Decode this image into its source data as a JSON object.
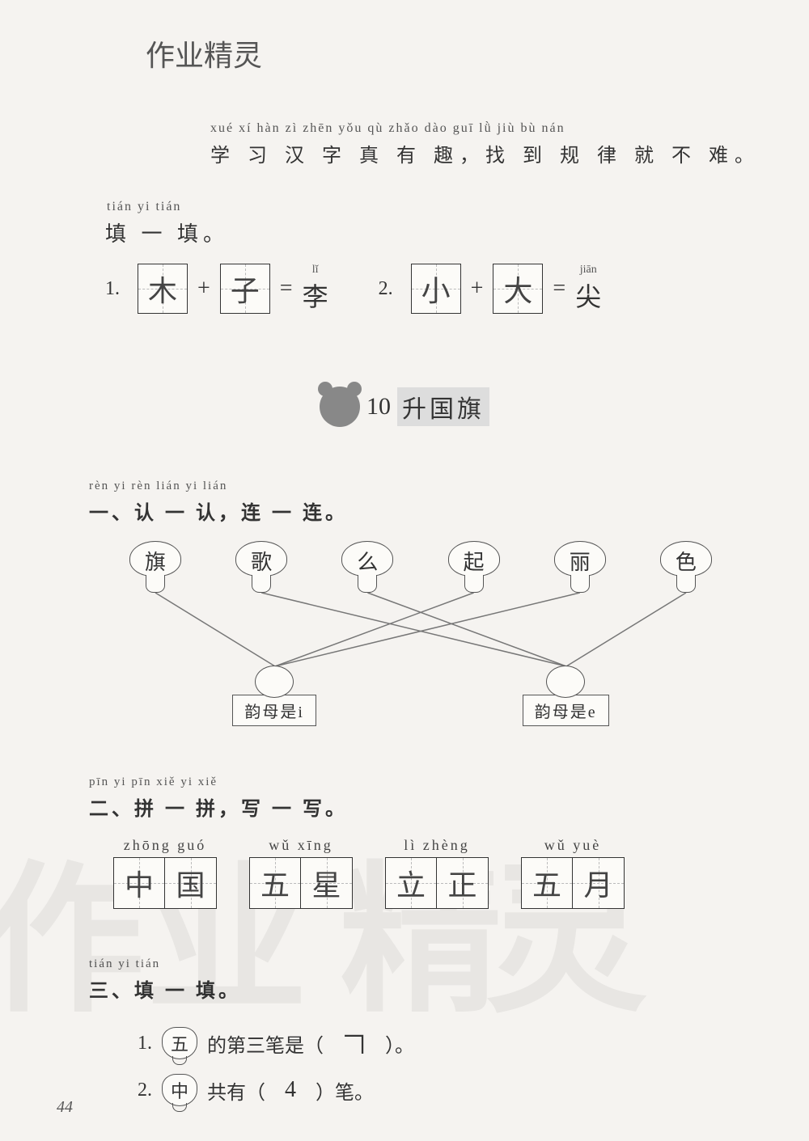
{
  "header": {
    "handwritten": "作业精灵"
  },
  "intro": {
    "pinyin": "xué xí hàn zì zhēn yǒu qù   zhǎo dào guī lǜ jiù bù nán",
    "hanzi": "学 习 汉 字 真 有 趣，找 到 规 律 就 不 难。"
  },
  "fill": {
    "pinyin": "tián yi tián",
    "hanzi": "填 一 填。",
    "equations": [
      {
        "num": "1.",
        "a": "木",
        "b": "子",
        "result": "李",
        "result_pinyin": "lǐ"
      },
      {
        "num": "2.",
        "a": "小",
        "b": "大",
        "result": "尖",
        "result_pinyin": "jiān"
      }
    ]
  },
  "lesson": {
    "number": "10",
    "title": "升国旗"
  },
  "ex1": {
    "pinyin": "rèn yi rèn  lián yi lián",
    "hanzi": "一、认 一 认，连 一 连。",
    "top_chars": [
      "旗",
      "歌",
      "么",
      "起",
      "丽",
      "色"
    ],
    "targets": [
      {
        "label": "韵母是i"
      },
      {
        "label": "韵母是e"
      }
    ],
    "connections": [
      {
        "from": 0,
        "to": 0
      },
      {
        "from": 1,
        "to": 1
      },
      {
        "from": 2,
        "to": 1
      },
      {
        "from": 3,
        "to": 0
      },
      {
        "from": 4,
        "to": 0
      },
      {
        "from": 5,
        "to": 1
      }
    ]
  },
  "ex2": {
    "pinyin": "pīn yi pīn  xiě yi xiě",
    "hanzi": "二、拼 一 拼，写 一 写。",
    "groups": [
      {
        "pinyin": "zhōng guó",
        "chars": [
          "中",
          "国"
        ]
      },
      {
        "pinyin": "wǔ  xīng",
        "chars": [
          "五",
          "星"
        ]
      },
      {
        "pinyin": "lì  zhèng",
        "chars": [
          "立",
          "正"
        ]
      },
      {
        "pinyin": "wǔ  yuè",
        "chars": [
          "五",
          "月"
        ]
      }
    ]
  },
  "ex3": {
    "pinyin": "tián yi tián",
    "hanzi": "三、填 一 填。",
    "items": [
      {
        "num": "1.",
        "char": "五",
        "pre": "的第三笔是（",
        "answer": "𠃍",
        "post": "）。"
      },
      {
        "num": "2.",
        "char": "中",
        "pre": "共有（",
        "answer": "4",
        "post": "）笔。"
      }
    ]
  },
  "page_number": "44",
  "colors": {
    "bg": "#f5f3f0",
    "text": "#333333",
    "box_border": "#333333",
    "guide": "#bbbbbb",
    "line": "#777777"
  }
}
